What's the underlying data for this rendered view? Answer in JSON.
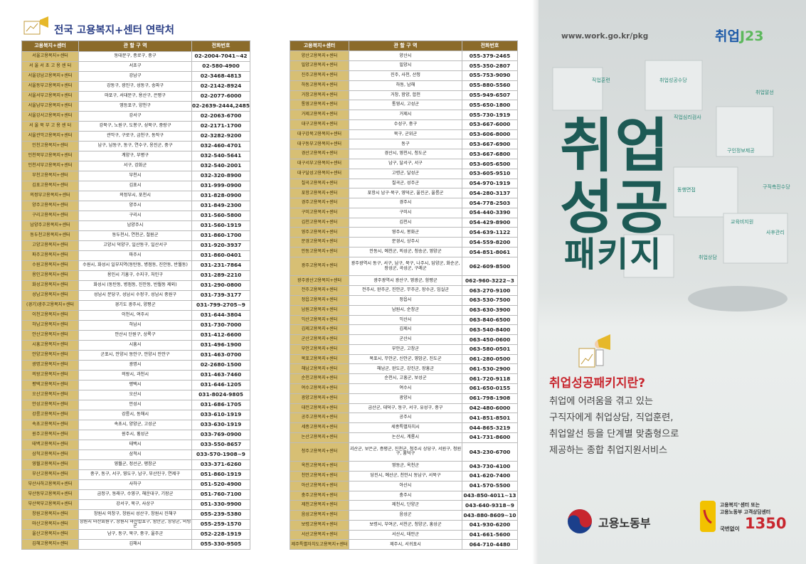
{
  "header": {
    "title": "전국 고용복지+센터 연락처"
  },
  "tables": [
    {
      "columns": [
        "고용복지+센터",
        "관 할 구 역",
        "전화번호"
      ],
      "rows": [
        [
          "서울고용복지+센터",
          "동대문구, 종로구, 중구",
          "02-2004-7041~42"
        ],
        [
          "서 울 서 초 고 용 센 터",
          "서초구",
          "02-580-4900"
        ],
        [
          "서울강남고용복지+센터",
          "강남구",
          "02-3468-4813"
        ],
        [
          "서울동부고용복지+센터",
          "강동구, 광진구, 성동구, 송파구",
          "02-2142-8924"
        ],
        [
          "서울서부고용복지+센터",
          "마포구, 서대문구, 용산구, 은평구",
          "02-2077-6000"
        ],
        [
          "서울남부고용복지+센터",
          "영등포구, 양천구",
          "02-2639-2444,2485"
        ],
        [
          "서울강서고용복지+센터",
          "강서구",
          "02-2063-6700"
        ],
        [
          "서 울 북 부 고 용 센 터",
          "강북구, 노원구, 도봉구, 성북구, 중랑구",
          "02-2171-1700"
        ],
        [
          "서울관악고용복지+센터",
          "관악구, 구로구, 금천구, 동작구",
          "02-3282-9200"
        ],
        [
          "인천고용복지+센터",
          "남구, 남동구, 동구, 연수구, 옹진군, 중구",
          "032-460-4701"
        ],
        [
          "인천북부고용복지+센터",
          "계양구, 부평구",
          "032-540-5641"
        ],
        [
          "인천서부고용복지+센터",
          "서구, 강화군",
          "032-540-2001"
        ],
        [
          "부천고용복지+센터",
          "부천시",
          "032-320-8900"
        ],
        [
          "김포고용복지+센터",
          "김포시",
          "031-999-0900"
        ],
        [
          "의정부고용복지+센터",
          "의정부시, 포천시",
          "031-828-0900"
        ],
        [
          "양주고용복지+센터",
          "양주시",
          "031-849-2300"
        ],
        [
          "구리고용복지+센터",
          "구리시",
          "031-560-5800"
        ],
        [
          "남양주고용복지+센터",
          "남양주시",
          "031-560-1919"
        ],
        [
          "동두천고용복지+센터",
          "동두천시, 연천군, 철원군",
          "031-860-1700"
        ],
        [
          "고양고용복지+센터",
          "고양시 덕양구, 일산동구, 일산서구",
          "031-920-3937"
        ],
        [
          "파주고용복지+센터",
          "파주시",
          "031-860-0401"
        ],
        [
          "수원고용복지+센터",
          "수원시, 화성시 일부지역(동탄동, 병점동, 진안동, 반월동)",
          "031-231-7864"
        ],
        [
          "용인고용복지+센터",
          "용인시 기흥구, 수지구, 처인구",
          "031-289-2210"
        ],
        [
          "화성고용복지+센터",
          "화성시 (동탄동, 병점동, 진안동, 반월동 제외)",
          "031-290-0800"
        ],
        [
          "성남고용복지+센터",
          "성남시 분당구, 성남시 수정구, 성남시 중원구",
          "031-739-3177"
        ],
        [
          "(경기)광주고용복지+센터",
          "경기도 광주시, 양평군",
          "031-799-2705~9"
        ],
        [
          "이천고용복지+센터",
          "이천시, 여주시",
          "031-644-3804"
        ],
        [
          "하남고용복지+센터",
          "하남시",
          "031-730-7000"
        ],
        [
          "안산고용복지+센터",
          "안산시 단원구, 상록구",
          "031-412-6600"
        ],
        [
          "시흥고용복지+센터",
          "시흥시",
          "031-496-1900"
        ],
        [
          "안양고용복지+센터",
          "군포시, 안양시 동안구, 안양시 만안구",
          "031-463-0700"
        ],
        [
          "광명고용복지+센터",
          "광명시",
          "02-2680-1500"
        ],
        [
          "의왕고용복지+센터",
          "의왕시, 과천시",
          "031-463-7460"
        ],
        [
          "평택고용복지+센터",
          "평택시",
          "031-646-1205"
        ],
        [
          "오산고용복지+센터",
          "오산시",
          "031-8024-9805"
        ],
        [
          "안성고용복지+센터",
          "안성시",
          "031-686-1705"
        ],
        [
          "강릉고용복지+센터",
          "강릉시, 동해시",
          "033-610-1919"
        ],
        [
          "속초고용복지+센터",
          "속초시, 양양군, 고성군",
          "033-630-1919"
        ],
        [
          "원주고용복지+센터",
          "원주시, 횡성군",
          "033-769-0900"
        ],
        [
          "태백고용복지+센터",
          "태백시",
          "033-550-8657"
        ],
        [
          "삼척고용복지+센터",
          "삼척시",
          "033-570-1908~9"
        ],
        [
          "영월고용복지+센터",
          "영월군, 정선군, 평창군",
          "033-371-6260"
        ],
        [
          "부산고용복지+센터",
          "중구, 동구, 서구, 영도구, 남구, 부산진구, 연제구",
          "051-860-1919"
        ],
        [
          "부산사하고용복지+센터",
          "사하구",
          "051-520-4900"
        ],
        [
          "부산동부고용복지+센터",
          "금정구, 동래구, 수영구, 해운대구, 기장군",
          "051-760-7100"
        ],
        [
          "부산북부고용복지+센터",
          "강서구, 북구, 사상구",
          "051-330-9900"
        ],
        [
          "창원고용복지+센터",
          "창원시 의창구, 창원시 성산구, 창원시 진해구",
          "055-239-5380"
        ],
        [
          "마산고용복지+센터",
          "창원시 마산회원구, 창원시 마산합포구, 함안군, 창녕군, 의령군",
          "055-259-1570"
        ],
        [
          "울산고용복지+센터",
          "남구, 동구, 북구, 중구, 울주군",
          "052-228-1919"
        ],
        [
          "김해고용복지+센터",
          "김해시",
          "055-330-9505"
        ]
      ]
    },
    {
      "columns": [
        "고용복지+센터",
        "관 할 구 역",
        "전화번호"
      ],
      "rows": [
        [
          "양산고용복지+센터",
          "양산시",
          "055-379-2465"
        ],
        [
          "밀양고용복지+센터",
          "밀양시",
          "055-350-2807"
        ],
        [
          "진주고용복지+센터",
          "진주, 사천, 산청",
          "055-753-9090"
        ],
        [
          "하동고용복지+센터",
          "하동, 남해",
          "055-880-5560"
        ],
        [
          "거창고용복지+센터",
          "거창, 함양, 합천",
          "055-949-6507"
        ],
        [
          "통영고용복지+센터",
          "통영시, 고성군",
          "055-650-1800"
        ],
        [
          "거제고용복지+센터",
          "거제시",
          "055-730-1919"
        ],
        [
          "대구고용복지+센터",
          "수성구, 중구",
          "053-667-6000"
        ],
        [
          "대구강북고용복지+센터",
          "북구, 군위군",
          "053-606-8000"
        ],
        [
          "대구동부고용복지+센터",
          "동구",
          "053-667-6900"
        ],
        [
          "경산고용복지+센터",
          "경산시, 영천시, 청도군",
          "053-667-6800"
        ],
        [
          "대구서부고용복지+센터",
          "남구, 달서구, 서구",
          "053-605-6500"
        ],
        [
          "대구달성고용복지+센터",
          "고령군, 달성군",
          "053-605-9510"
        ],
        [
          "칠곡고용복지+센터",
          "칠곡군, 성주군",
          "054-970-1919"
        ],
        [
          "포항고용복지+센터",
          "포항시 남구·북구, 영덕군, 울진군, 울릉군",
          "054-280-3137"
        ],
        [
          "경주고용복지+센터",
          "경주시",
          "054-778-2503"
        ],
        [
          "구미고용복지+센터",
          "구미시",
          "054-440-3390"
        ],
        [
          "김천고용복지+센터",
          "김천시",
          "054-429-8900"
        ],
        [
          "영주고용복지+센터",
          "영주시, 봉화군",
          "054-639-1122"
        ],
        [
          "문경고용복지+센터",
          "문경시, 상주시",
          "054-559-8200"
        ],
        [
          "안동고용복지+센터",
          "안동시, 예천군, 의성군, 청송군, 영양군",
          "054-851-8061"
        ],
        [
          "광주고용복지+센터",
          "광주광역시 동구, 서구, 남구, 북구, 나주시, 담양군, 화순군, 장성군, 곡성군, 구례군",
          "062-609-8500"
        ],
        [
          "광주광산고용복지+센터",
          "광주광역시 광산구, 영광군, 함평군",
          "062-960-3222~3"
        ],
        [
          "전주고용복지+센터",
          "전주시, 완주군, 진안군, 무주군, 장수군, 임실군",
          "063-270-9100"
        ],
        [
          "정읍고용복지+센터",
          "정읍시",
          "063-530-7500"
        ],
        [
          "남원고용복지+센터",
          "남원시, 순창군",
          "063-630-3900"
        ],
        [
          "익산고용복지+센터",
          "익산시",
          "063-840-6500"
        ],
        [
          "김제고용복지+센터",
          "김제시",
          "063-540-8400"
        ],
        [
          "군산고용복지+센터",
          "군산시",
          "063-450-0600"
        ],
        [
          "부안고용복지+센터",
          "부안군, 고창군",
          "063-580-0501"
        ],
        [
          "목포고용복지+센터",
          "목포시, 무안군, 신안군, 영암군, 진도군",
          "061-280-0500"
        ],
        [
          "해남고용복지+센터",
          "해남군, 완도군, 강진군, 장흥군",
          "061-530-2900"
        ],
        [
          "순천고용복지+센터",
          "순천시, 고흥군, 보성군",
          "061-720-9118"
        ],
        [
          "여수고용복지+센터",
          "여수시",
          "061-650-0155"
        ],
        [
          "광양고용복지+센터",
          "광양시",
          "061-798-1908"
        ],
        [
          "대전고용복지+센터",
          "금산군, 대덕구, 동구, 서구, 유성구, 중구",
          "042-480-6000"
        ],
        [
          "공주고용복지+센터",
          "공주시",
          "041-851-8501"
        ],
        [
          "세종고용복지+센터",
          "세종특별자치시",
          "044-865-3219"
        ],
        [
          "논산고용복지+센터",
          "논산시, 계룡시",
          "041-731-8600"
        ],
        [
          "청주고용복지+센터",
          "괴산군, 보은군, 증평군, 진천군, 청주시 상당구, 서원구, 청원구, 흥덕구",
          "043-230-6700"
        ],
        [
          "옥천고용복지+센터",
          "영동군, 옥천군",
          "043-730-4100"
        ],
        [
          "천안고용복지+센터",
          "당진시, 예산군, 천안시 동남구, 서북구",
          "041-620-7400"
        ],
        [
          "아산고용복지+센터",
          "아산시",
          "041-570-5500"
        ],
        [
          "충주고용복지+센터",
          "충주시",
          "043-850-4011~13"
        ],
        [
          "제천고용복지+센터",
          "제천시, 단양군",
          "043-640-9318~9"
        ],
        [
          "음성고용복지+센터",
          "음성군",
          "043-880-8609~10"
        ],
        [
          "보령고용복지+센터",
          "보령시, 부여군, 서천군, 청양군, 홍성군",
          "041-930-6200"
        ],
        [
          "서산고용복지+센터",
          "서산시, 태안군",
          "041-661-5600"
        ],
        [
          "제주특별자치도고용복지+센터",
          "제주시, 서귀포시",
          "064-710-4480"
        ]
      ]
    }
  ],
  "cover": {
    "url": "www.work.go.kr/pkg",
    "logo": "취업",
    "logo_mark": "J23",
    "title": [
      "취업",
      "성공",
      "패키지"
    ],
    "puzzle_labels": [
      "직업훈련",
      "취업성공수당",
      "취업알선",
      "직업심리검사",
      "구인정보제공",
      "동행면접",
      "구직촉진수당",
      "교육비지원",
      "사후관리",
      "취업상담"
    ],
    "question": "취업성공패키지란?",
    "description": [
      "취업에 어려움을 겪고 있는",
      "구직자에게 취업상담, 직업훈련,",
      "취업알선 등을 단계별 맞춤형으로",
      "제공하는 종합 취업지원서비스"
    ],
    "ministry": "고용노동부",
    "contact": [
      "고용복지⁺센터 또는",
      "고용노동부 고객상담센터"
    ],
    "phone_prefix": "국번없이",
    "phone": "1350"
  }
}
